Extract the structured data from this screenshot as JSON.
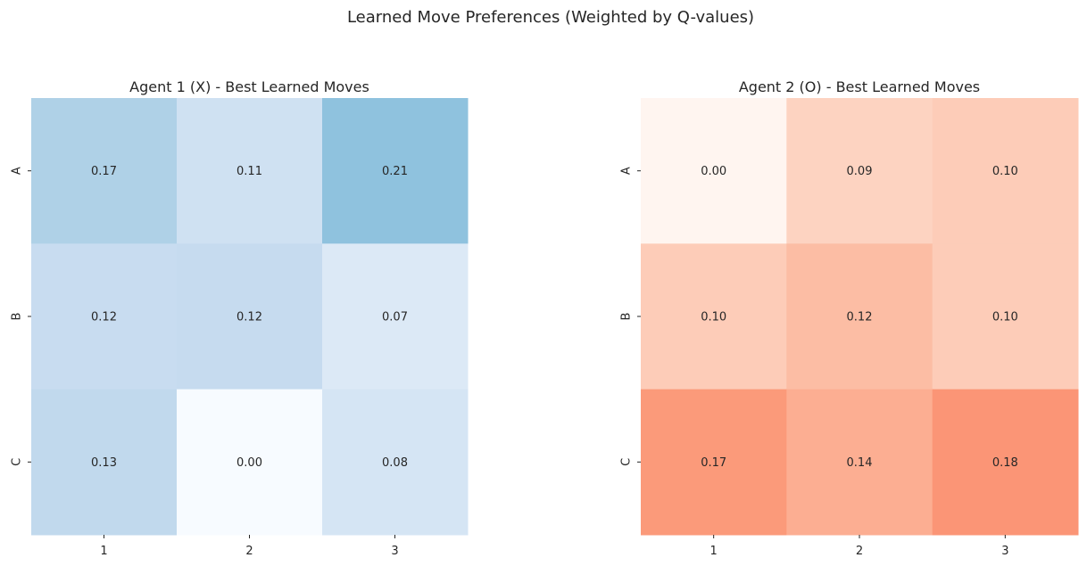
{
  "figure_title": "Learned Move Preferences (Weighted by Q-values)",
  "chart_data": [
    {
      "type": "heatmap",
      "title": "Agent 1 (X) - Best Learned Moves",
      "colormap": "Blues",
      "xticklabels": [
        "1",
        "2",
        "3"
      ],
      "yticklabels": [
        "A",
        "B",
        "C"
      ],
      "values": [
        [
          0.17,
          0.11,
          0.21
        ],
        [
          0.12,
          0.12,
          0.07
        ],
        [
          0.13,
          0.0,
          0.08
        ]
      ],
      "cell_colors": [
        [
          "#afd1e7",
          "#cfe1f2",
          "#8fc2de"
        ],
        [
          "#c8dcf0",
          "#c6dbef",
          "#dce9f6"
        ],
        [
          "#c1d9ed",
          "#f7fbff",
          "#d5e5f4"
        ]
      ],
      "colorbar": false,
      "annot_fmt": "0.00"
    },
    {
      "type": "heatmap",
      "title": "Agent 2 (O) - Best Learned Moves",
      "colormap": "Reds",
      "xticklabels": [
        "1",
        "2",
        "3"
      ],
      "yticklabels": [
        "A",
        "B",
        "C"
      ],
      "values": [
        [
          0.0,
          0.09,
          0.1
        ],
        [
          0.1,
          0.12,
          0.1
        ],
        [
          0.17,
          0.14,
          0.18
        ]
      ],
      "cell_colors": [
        [
          "#fff5f0",
          "#fdd3c1",
          "#fdccb8"
        ],
        [
          "#fdccb8",
          "#fcbda4",
          "#fdccb8"
        ],
        [
          "#fb9a7a",
          "#fcae92",
          "#fb9576"
        ]
      ],
      "colorbar": false,
      "annot_fmt": "0.00"
    }
  ]
}
